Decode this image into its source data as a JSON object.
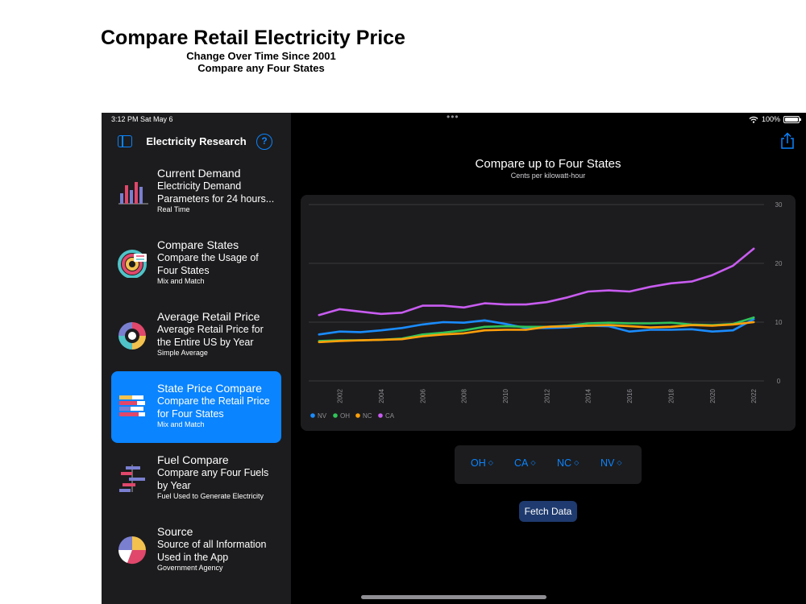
{
  "caption": {
    "title": "Compare Retail Electricity Price",
    "subtitle_line1": "Change Over Time Since 2001",
    "subtitle_line2": "Compare any Four States"
  },
  "status_bar": {
    "time": "3:12 PM   Sat May 6",
    "battery": "100%",
    "battery_level": 1.0
  },
  "sidebar": {
    "title": "Electricity Research",
    "help_label": "?",
    "items": [
      {
        "title": "Current Demand",
        "desc": "Electricity Demand Parameters for 24 hours...",
        "note": "Real Time",
        "icon": "bar-chart-icon"
      },
      {
        "title": "Compare States",
        "desc": "Compare the Usage of Four States",
        "note": "Mix and Match",
        "icon": "ring-chart-icon"
      },
      {
        "title": "Average Retail Price",
        "desc": "Average Retail Price for the Entire US by Year",
        "note": "Simple Average",
        "icon": "donut-chart-icon"
      },
      {
        "title": "State Price Compare",
        "desc": "Compare the Retail Price for Four States",
        "note": "Mix and Match",
        "icon": "stacked-bars-icon",
        "selected": true
      },
      {
        "title": "Fuel Compare",
        "desc": "Compare any Four Fuels by Year",
        "note": "Fuel Used to Generate Electricity",
        "icon": "range-bars-icon"
      },
      {
        "title": "Source",
        "desc": "Source of all Information Used in the App",
        "note": "Government Agency",
        "icon": "pie-chart-icon"
      }
    ]
  },
  "main": {
    "chart_title": "Compare up to Four States",
    "chart_subtitle": "Cents per kilowatt-hour",
    "pickers": [
      {
        "label": "OH"
      },
      {
        "label": "CA"
      },
      {
        "label": "NC"
      },
      {
        "label": "NV"
      }
    ],
    "fetch_button": "Fetch Data"
  },
  "colors": {
    "accent": "#0a84ff",
    "NV": "#1a8cff",
    "OH": "#30c45a",
    "NC": "#ff9f0a",
    "CA": "#c85cf0"
  },
  "chart_data": {
    "type": "line",
    "x": [
      2001,
      2002,
      2003,
      2004,
      2005,
      2006,
      2007,
      2008,
      2009,
      2010,
      2011,
      2012,
      2013,
      2014,
      2015,
      2016,
      2017,
      2018,
      2019,
      2020,
      2021,
      2022
    ],
    "x_ticks": [
      "2002",
      "2004",
      "2006",
      "2008",
      "2010",
      "2012",
      "2014",
      "2016",
      "2018",
      "2020",
      "2022"
    ],
    "y_ticks": [
      "0",
      "10",
      "20",
      "30"
    ],
    "ylim": [
      0,
      30
    ],
    "grid": true,
    "legend_position": "bottom-left",
    "series": [
      {
        "name": "NV",
        "values": [
          7.9,
          8.4,
          8.3,
          8.6,
          9.0,
          9.6,
          10.0,
          9.9,
          10.3,
          9.7,
          9.0,
          9.0,
          9.1,
          9.4,
          9.3,
          8.4,
          8.7,
          8.7,
          8.8,
          8.4,
          8.6,
          10.5
        ]
      },
      {
        "name": "OH",
        "values": [
          6.8,
          6.9,
          6.9,
          7.0,
          7.2,
          7.9,
          8.2,
          8.6,
          9.2,
          9.3,
          9.2,
          9.2,
          9.4,
          9.8,
          9.9,
          9.8,
          9.8,
          9.9,
          9.6,
          9.5,
          9.7,
          10.8
        ]
      },
      {
        "name": "NC",
        "values": [
          6.6,
          6.8,
          6.9,
          7.0,
          7.1,
          7.6,
          7.9,
          8.1,
          8.6,
          8.7,
          8.7,
          9.2,
          9.3,
          9.4,
          9.5,
          9.3,
          9.1,
          9.2,
          9.5,
          9.4,
          9.6,
          10.0
        ]
      },
      {
        "name": "CA",
        "values": [
          11.2,
          12.2,
          11.8,
          11.4,
          11.6,
          12.8,
          12.8,
          12.5,
          13.2,
          13.0,
          13.0,
          13.4,
          14.2,
          15.2,
          15.4,
          15.2,
          16.0,
          16.6,
          16.9,
          18.0,
          19.6,
          22.5
        ]
      }
    ]
  }
}
